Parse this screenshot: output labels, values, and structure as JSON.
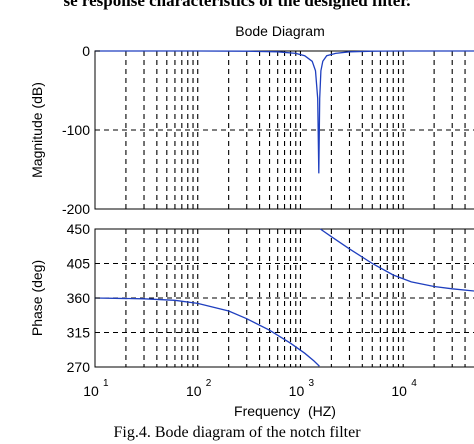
{
  "header_text": "se response characteristics of the designed filter.",
  "caption": "Fig.4. Bode diagram of the notch filter",
  "colors": {
    "curve": "#1f3fbf",
    "axis": "#000000",
    "grid": "#000000",
    "background": "#ffffff"
  },
  "chart_data": [
    {
      "type": "line",
      "title": "Bode Diagram",
      "ylabel": "Magnitude (dB)",
      "xlabel": "",
      "x_scale": "log",
      "xlim": [
        10,
        50000
      ],
      "ylim": [
        -200,
        0
      ],
      "yticks": [
        0,
        -100,
        -200
      ],
      "ytick_labels": [
        "0",
        "-100",
        "-200"
      ],
      "grid": true,
      "series": [
        {
          "x": [
            10,
            100,
            300,
            600,
            900,
            1100,
            1300,
            1400,
            1470,
            1510,
            1540,
            1580,
            1650,
            1800,
            2200,
            3000,
            5000,
            10000,
            20000,
            50000
          ],
          "y": [
            0,
            0,
            -0.2,
            -1,
            -3,
            -6,
            -13,
            -25,
            -60,
            -155,
            -60,
            -25,
            -13,
            -6,
            -3,
            -1,
            -0.3,
            0,
            0,
            0
          ]
        }
      ]
    },
    {
      "type": "line",
      "title": "",
      "ylabel": "Phase (deg)",
      "xlabel": "Frequency  (HZ)",
      "x_scale": "log",
      "xlim": [
        10,
        50000
      ],
      "ylim": [
        270,
        450
      ],
      "yticks": [
        270,
        315,
        360,
        405,
        450
      ],
      "ytick_labels": [
        "270",
        "315",
        "360",
        "405",
        "450"
      ],
      "xtick_bases": [
        "10",
        "10",
        "10",
        "10"
      ],
      "xtick_exps": [
        "1",
        "2",
        "3",
        "4"
      ],
      "grid": true,
      "series": [
        {
          "x": [
            10,
            30,
            60,
            100,
            200,
            300,
            500,
            800,
            1100,
            1350,
            1530
          ],
          "y": [
            360,
            359,
            357,
            353,
            343,
            333,
            318,
            301,
            288,
            278,
            271
          ]
        },
        {
          "x": [
            1560,
            2000,
            3000,
            5000,
            8000,
            12000,
            20000,
            30000,
            50000
          ],
          "y": [
            450,
            440,
            424,
            405,
            390,
            381,
            375,
            372,
            369
          ]
        }
      ]
    }
  ]
}
